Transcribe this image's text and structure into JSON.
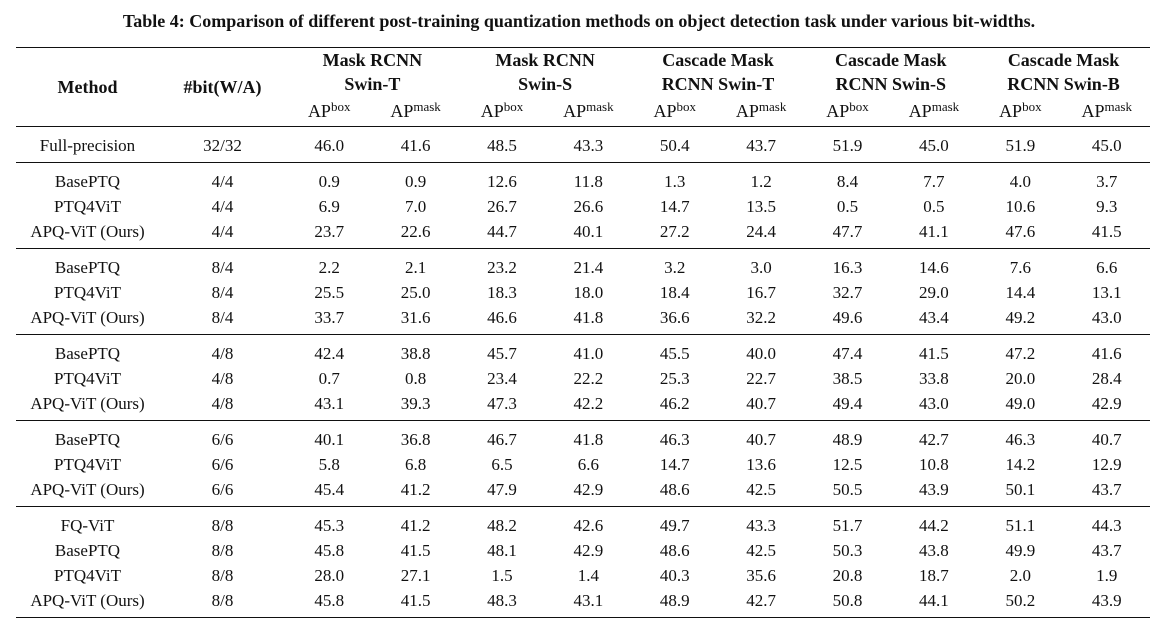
{
  "caption": "Table 4: Comparison of different post-training quantization methods on object detection task under various bit-widths.",
  "header": {
    "method": "Method",
    "bit": "#bit(W/A)",
    "ap_box": "AP",
    "ap_box_sup": "box",
    "ap_mask": "AP",
    "ap_mask_sup": "mask",
    "models": [
      {
        "line1": "Mask RCNN",
        "line2": "Swin-T"
      },
      {
        "line1": "Mask RCNN",
        "line2": "Swin-S"
      },
      {
        "line1": "Cascade Mask",
        "line2": "RCNN Swin-T"
      },
      {
        "line1": "Cascade Mask",
        "line2": "RCNN Swin-S"
      },
      {
        "line1": "Cascade Mask",
        "line2": "RCNN Swin-B"
      }
    ]
  },
  "groups": [
    {
      "rows": [
        {
          "method": "Full-precision",
          "bit": "32/32",
          "values": [
            "46.0",
            "41.6",
            "48.5",
            "43.3",
            "50.4",
            "43.7",
            "51.9",
            "45.0",
            "51.9",
            "45.0"
          ],
          "bold": false
        }
      ]
    },
    {
      "rows": [
        {
          "method": "BasePTQ",
          "bit": "4/4",
          "values": [
            "0.9",
            "0.9",
            "12.6",
            "11.8",
            "1.3",
            "1.2",
            "8.4",
            "7.7",
            "4.0",
            "3.7"
          ],
          "bold": false
        },
        {
          "method": "PTQ4ViT",
          "bit": "4/4",
          "values": [
            "6.9",
            "7.0",
            "26.7",
            "26.6",
            "14.7",
            "13.5",
            "0.5",
            "0.5",
            "10.6",
            "9.3"
          ],
          "bold": false
        },
        {
          "method": "APQ-ViT (Ours)",
          "bit": "4/4",
          "values": [
            "23.7",
            "22.6",
            "44.7",
            "40.1",
            "27.2",
            "24.4",
            "47.7",
            "41.1",
            "47.6",
            "41.5"
          ],
          "bold": true
        }
      ]
    },
    {
      "rows": [
        {
          "method": "BasePTQ",
          "bit": "8/4",
          "values": [
            "2.2",
            "2.1",
            "23.2",
            "21.4",
            "3.2",
            "3.0",
            "16.3",
            "14.6",
            "7.6",
            "6.6"
          ],
          "bold": false
        },
        {
          "method": "PTQ4ViT",
          "bit": "8/4",
          "values": [
            "25.5",
            "25.0",
            "18.3",
            "18.0",
            "18.4",
            "16.7",
            "32.7",
            "29.0",
            "14.4",
            "13.1"
          ],
          "bold": false
        },
        {
          "method": "APQ-ViT (Ours)",
          "bit": "8/4",
          "values": [
            "33.7",
            "31.6",
            "46.6",
            "41.8",
            "36.6",
            "32.2",
            "49.6",
            "43.4",
            "49.2",
            "43.0"
          ],
          "bold": true
        }
      ]
    },
    {
      "rows": [
        {
          "method": "BasePTQ",
          "bit": "4/8",
          "values": [
            "42.4",
            "38.8",
            "45.7",
            "41.0",
            "45.5",
            "40.0",
            "47.4",
            "41.5",
            "47.2",
            "41.6"
          ],
          "bold": false
        },
        {
          "method": "PTQ4ViT",
          "bit": "4/8",
          "values": [
            "0.7",
            "0.8",
            "23.4",
            "22.2",
            "25.3",
            "22.7",
            "38.5",
            "33.8",
            "20.0",
            "28.4"
          ],
          "bold": false
        },
        {
          "method": "APQ-ViT (Ours)",
          "bit": "4/8",
          "values": [
            "43.1",
            "39.3",
            "47.3",
            "42.2",
            "46.2",
            "40.7",
            "49.4",
            "43.0",
            "49.0",
            "42.9"
          ],
          "bold": true
        }
      ]
    },
    {
      "rows": [
        {
          "method": "BasePTQ",
          "bit": "6/6",
          "values": [
            "40.1",
            "36.8",
            "46.7",
            "41.8",
            "46.3",
            "40.7",
            "48.9",
            "42.7",
            "46.3",
            "40.7"
          ],
          "bold": false
        },
        {
          "method": "PTQ4ViT",
          "bit": "6/6",
          "values": [
            "5.8",
            "6.8",
            "6.5",
            "6.6",
            "14.7",
            "13.6",
            "12.5",
            "10.8",
            "14.2",
            "12.9"
          ],
          "bold": false
        },
        {
          "method": "APQ-ViT (Ours)",
          "bit": "6/6",
          "values": [
            "45.4",
            "41.2",
            "47.9",
            "42.9",
            "48.6",
            "42.5",
            "50.5",
            "43.9",
            "50.1",
            "43.7"
          ],
          "bold": true
        }
      ]
    },
    {
      "rows": [
        {
          "method": "FQ-ViT",
          "bit": "8/8",
          "values": [
            "45.3",
            "41.2",
            "48.2",
            "42.6",
            "49.7",
            "43.3",
            "51.7",
            "44.2",
            "51.1",
            "44.3"
          ],
          "bold": false
        },
        {
          "method": "BasePTQ",
          "bit": "8/8",
          "values": [
            "45.8",
            "41.5",
            "48.1",
            "42.9",
            "48.6",
            "42.5",
            "50.3",
            "43.8",
            "49.9",
            "43.7"
          ],
          "bold": false
        },
        {
          "method": "PTQ4ViT",
          "bit": "8/8",
          "values": [
            "28.0",
            "27.1",
            "1.5",
            "1.4",
            "40.3",
            "35.6",
            "20.8",
            "18.7",
            "2.0",
            "1.9"
          ],
          "bold": false
        },
        {
          "method": "APQ-ViT (Ours)",
          "bit": "8/8",
          "values": [
            "45.8",
            "41.5",
            "48.3",
            "43.1",
            "48.9",
            "42.7",
            "50.8",
            "44.1",
            "50.2",
            "43.9"
          ],
          "bold": true,
          "bold_mask": [
            true,
            true,
            true,
            true,
            true,
            true,
            false,
            true,
            true,
            true
          ]
        }
      ]
    }
  ]
}
